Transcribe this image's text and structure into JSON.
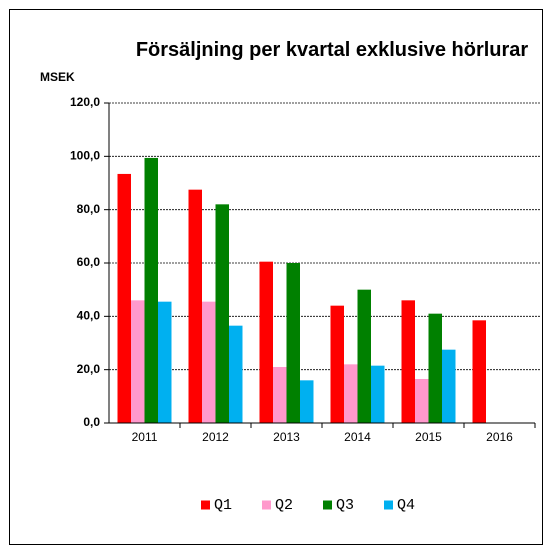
{
  "chart_data": {
    "type": "bar",
    "title": "Försäljning per kvartal exklusive hörlurar",
    "y_label": "MSEK",
    "categories": [
      "2011",
      "2012",
      "2013",
      "2014",
      "2015",
      "2016"
    ],
    "series": [
      {
        "name": "Q1",
        "color": "#ff0000",
        "values": [
          93.4,
          87.5,
          60.5,
          44,
          46,
          38.5
        ]
      },
      {
        "name": "Q2",
        "color": "#ff99cc",
        "values": [
          46,
          45.5,
          21,
          22,
          16.5,
          null
        ]
      },
      {
        "name": "Q3",
        "color": "#008000",
        "values": [
          99.4,
          82,
          60,
          50,
          41,
          null
        ]
      },
      {
        "name": "Q4",
        "color": "#00b0f0",
        "values": [
          45.5,
          36.5,
          16,
          21.5,
          27.5,
          null
        ]
      }
    ],
    "ylim": [
      0,
      120
    ],
    "yticks": [
      {
        "value": 0,
        "label": "0,0"
      },
      {
        "value": 20,
        "label": "20,0"
      },
      {
        "value": 40,
        "label": "40,0"
      },
      {
        "value": 60,
        "label": "60,0"
      },
      {
        "value": 80,
        "label": "80,0"
      },
      {
        "value": 100,
        "label": "100,0"
      },
      {
        "value": 120,
        "label": "120,0"
      }
    ],
    "grid": true,
    "legend": "bottom"
  }
}
